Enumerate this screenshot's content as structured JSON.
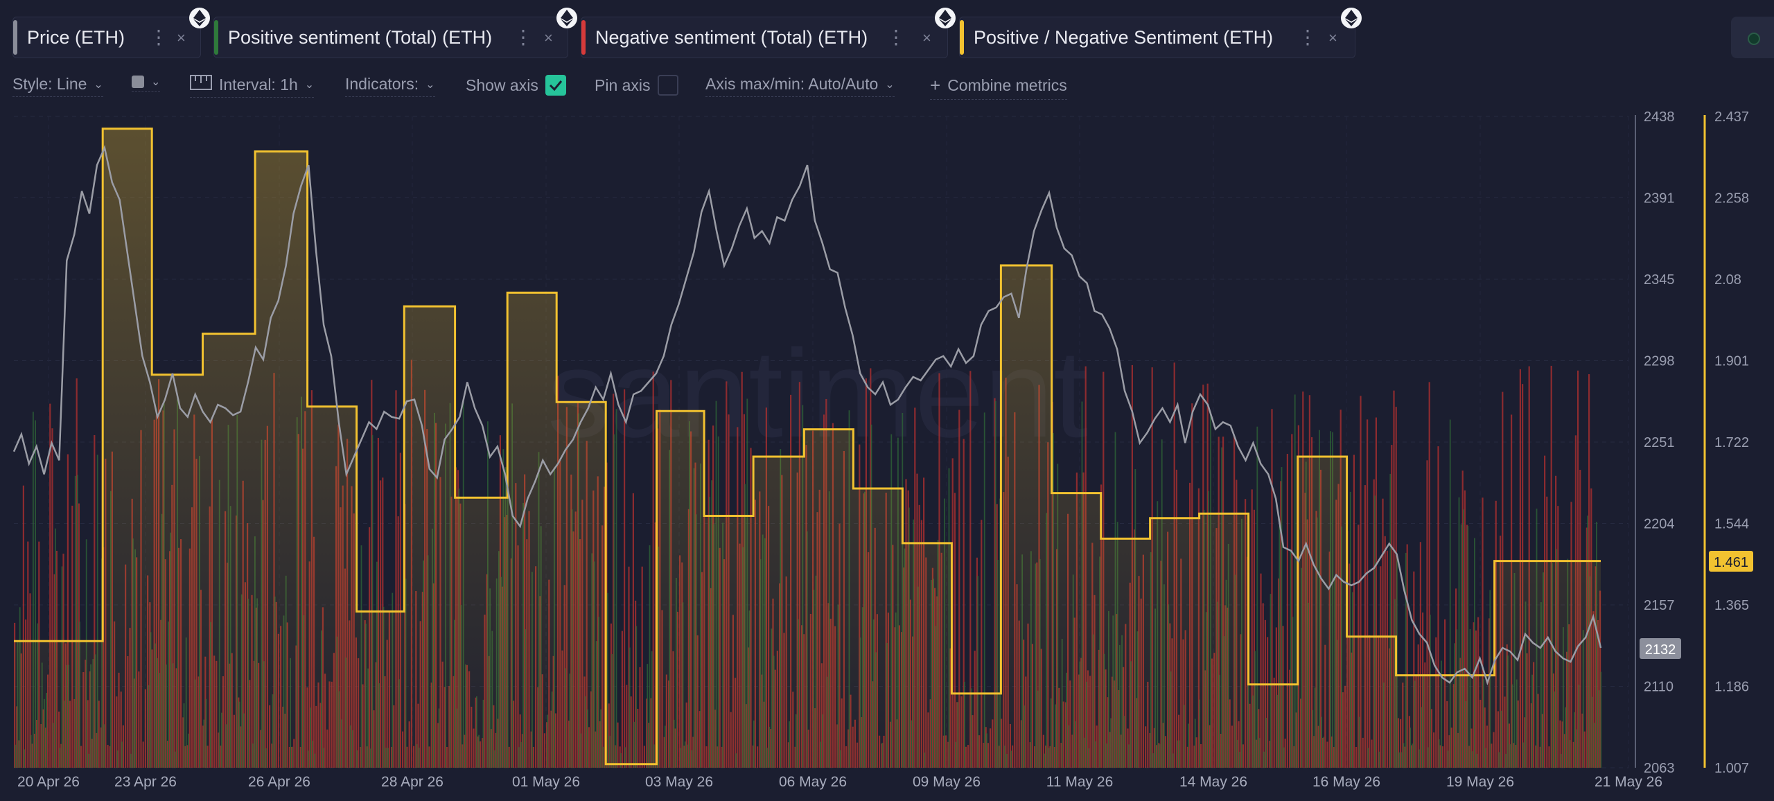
{
  "tabs": [
    {
      "label": "Price (ETH)",
      "color": "#8a8d99"
    },
    {
      "label": "Positive sentiment (Total) (ETH)",
      "color": "#2f7a3b"
    },
    {
      "label": "Negative sentiment (Total) (ETH)",
      "color": "#d63a3a"
    },
    {
      "label": "Positive / Negative Sentiment (ETH)",
      "color": "#f2c230"
    }
  ],
  "toolbar": {
    "style_label": "Style: Line",
    "interval_label": "Interval: 1h",
    "indicators_label": "Indicators:",
    "show_axis_label": "Show axis",
    "show_axis_checked": true,
    "pin_axis_label": "Pin axis",
    "pin_axis_checked": false,
    "axis_label": "Axis max/min: Auto/Auto",
    "combine_label": "Combine metrics"
  },
  "watermark": "santiment",
  "chart_data": {
    "type": "line",
    "x_labels": [
      "20 Apr 26",
      "23 Apr 26",
      "26 Apr 26",
      "28 Apr 26",
      "01 May 26",
      "03 May 26",
      "06 May 26",
      "09 May 26",
      "11 May 26",
      "14 May 26",
      "16 May 26",
      "19 May 26",
      "21 May 26"
    ],
    "price_axis": {
      "ticks": [
        "2438",
        "2391",
        "2345",
        "2298",
        "2251",
        "2204",
        "2157",
        "2110",
        "2063"
      ],
      "min": 2063,
      "max": 2438,
      "current": "2132"
    },
    "ratio_axis": {
      "ticks": [
        "2.437",
        "2.258",
        "2.08",
        "1.901",
        "1.722",
        "1.544",
        "1.365",
        "1.186",
        "1.007"
      ],
      "min": 1.007,
      "max": 2.437,
      "current": "1.461"
    },
    "series": [
      {
        "name": "Price (ETH)",
        "color": "#9b9da6",
        "values": [
          2245,
          2255,
          2238,
          2248,
          2232,
          2250,
          2240,
          2355,
          2370,
          2395,
          2382,
          2410,
          2420,
          2400,
          2390,
          2360,
          2330,
          2300,
          2285,
          2265,
          2275,
          2290,
          2270,
          2265,
          2278,
          2268,
          2262,
          2272,
          2270,
          2266,
          2268,
          2285,
          2305,
          2298,
          2322,
          2332,
          2352,
          2382,
          2398,
          2410,
          2360,
          2318,
          2300,
          2262,
          2232,
          2242,
          2252,
          2262,
          2258,
          2268,
          2265,
          2264,
          2274,
          2275,
          2260,
          2235,
          2230,
          2252,
          2258,
          2265,
          2285,
          2270,
          2260,
          2242,
          2248,
          2232,
          2208,
          2202,
          2218,
          2228,
          2240,
          2232,
          2238,
          2246,
          2252,
          2262,
          2270,
          2282,
          2275,
          2290,
          2272,
          2262,
          2278,
          2280,
          2285,
          2290,
          2300,
          2318,
          2330,
          2345,
          2360,
          2383,
          2395,
          2372,
          2352,
          2362,
          2375,
          2385,
          2368,
          2372,
          2365,
          2380,
          2378,
          2390,
          2398,
          2410,
          2378,
          2365,
          2350,
          2348,
          2328,
          2312,
          2290,
          2282,
          2278,
          2285,
          2272,
          2275,
          2282,
          2288,
          2286,
          2292,
          2298,
          2300,
          2294,
          2304,
          2296,
          2300,
          2318,
          2326,
          2328,
          2334,
          2336,
          2322,
          2350,
          2372,
          2384,
          2394,
          2374,
          2362,
          2358,
          2346,
          2342,
          2326,
          2324,
          2316,
          2304,
          2280,
          2268,
          2250,
          2256,
          2264,
          2270,
          2262,
          2272,
          2250,
          2268,
          2278,
          2272,
          2258,
          2262,
          2260,
          2248,
          2240,
          2250,
          2238,
          2232,
          2218,
          2190,
          2188,
          2182,
          2192,
          2180,
          2172,
          2166,
          2174,
          2170,
          2168,
          2170,
          2175,
          2178,
          2185,
          2192,
          2186,
          2165,
          2148,
          2140,
          2135,
          2122,
          2115,
          2112,
          2118,
          2120,
          2115,
          2126,
          2112,
          2125,
          2132,
          2130,
          2125,
          2140,
          2135,
          2132,
          2138,
          2130,
          2126,
          2124,
          2133,
          2138,
          2150,
          2132
        ]
      },
      {
        "name": "Positive / Negative Sentiment (ETH)",
        "color": "#f2c230",
        "steps": [
          {
            "from": 0.0,
            "to": 0.056,
            "v": 1.285
          },
          {
            "from": 0.056,
            "to": 0.087,
            "v": 2.41
          },
          {
            "from": 0.087,
            "to": 0.119,
            "v": 1.87
          },
          {
            "from": 0.119,
            "to": 0.152,
            "v": 1.96
          },
          {
            "from": 0.152,
            "to": 0.185,
            "v": 2.36
          },
          {
            "from": 0.185,
            "to": 0.216,
            "v": 1.8
          },
          {
            "from": 0.216,
            "to": 0.246,
            "v": 1.35
          },
          {
            "from": 0.246,
            "to": 0.278,
            "v": 2.02
          },
          {
            "from": 0.278,
            "to": 0.311,
            "v": 1.6
          },
          {
            "from": 0.311,
            "to": 0.342,
            "v": 2.05
          },
          {
            "from": 0.342,
            "to": 0.373,
            "v": 1.81
          },
          {
            "from": 0.373,
            "to": 0.405,
            "v": 1.015
          },
          {
            "from": 0.405,
            "to": 0.435,
            "v": 1.79
          },
          {
            "from": 0.435,
            "to": 0.466,
            "v": 1.56
          },
          {
            "from": 0.466,
            "to": 0.498,
            "v": 1.69
          },
          {
            "from": 0.498,
            "to": 0.529,
            "v": 1.75
          },
          {
            "from": 0.529,
            "to": 0.56,
            "v": 1.62
          },
          {
            "from": 0.56,
            "to": 0.591,
            "v": 1.5
          },
          {
            "from": 0.591,
            "to": 0.622,
            "v": 1.17
          },
          {
            "from": 0.622,
            "to": 0.654,
            "v": 2.11
          },
          {
            "from": 0.654,
            "to": 0.685,
            "v": 1.61
          },
          {
            "from": 0.685,
            "to": 0.716,
            "v": 1.51
          },
          {
            "from": 0.716,
            "to": 0.747,
            "v": 1.555
          },
          {
            "from": 0.747,
            "to": 0.778,
            "v": 1.565
          },
          {
            "from": 0.778,
            "to": 0.809,
            "v": 1.19
          },
          {
            "from": 0.809,
            "to": 0.84,
            "v": 1.69
          },
          {
            "from": 0.84,
            "to": 0.871,
            "v": 1.295
          },
          {
            "from": 0.871,
            "to": 0.933,
            "v": 1.21
          },
          {
            "from": 0.933,
            "to": 1.0,
            "v": 1.461
          }
        ]
      },
      {
        "name": "Positive sentiment (Total) (ETH)",
        "color": "#2f7a3b"
      },
      {
        "name": "Negative sentiment (Total) (ETH)",
        "color": "#d63a3a"
      }
    ],
    "legend": "top"
  }
}
